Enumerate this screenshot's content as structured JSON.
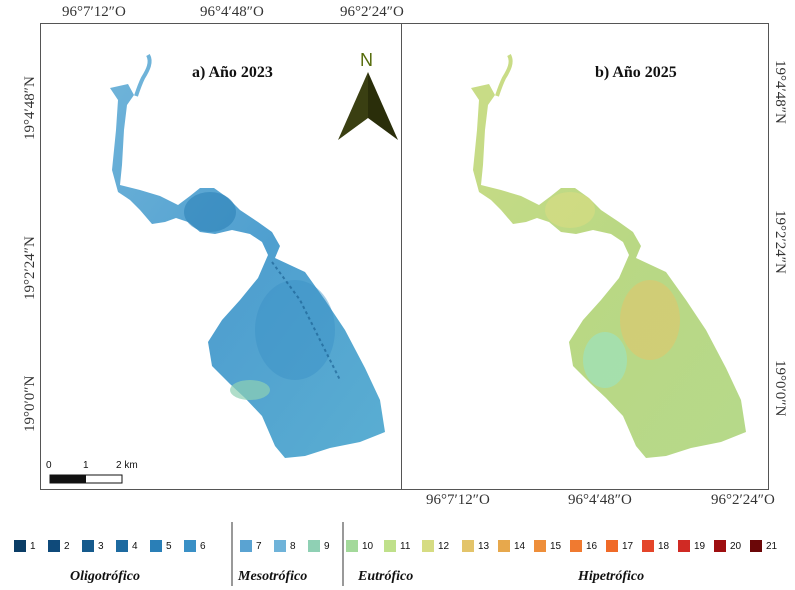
{
  "panels": {
    "a": {
      "title": "a) Año 2023"
    },
    "b": {
      "title": "b) Año 2025"
    }
  },
  "coords": {
    "top": [
      "96°7′12″O",
      "96°4′48″O",
      "96°2′24″O"
    ],
    "bottom": [
      "96°7′12″O",
      "96°4′48″O",
      "96°2′24″O"
    ],
    "left": [
      "19°4′48″N",
      "19°2′24″N",
      "19°0′0″N"
    ],
    "right": [
      "19°4′48″N",
      "19°2′24″N",
      "19°0′0″N"
    ]
  },
  "north_arrow": {
    "label": "N"
  },
  "scale_bar": {
    "labels": [
      "0",
      "1",
      "2 km"
    ]
  },
  "legend": {
    "items": [
      {
        "label": "1",
        "color": "#0b3d66"
      },
      {
        "label": "2",
        "color": "#0f4a7a"
      },
      {
        "label": "3",
        "color": "#155a8c"
      },
      {
        "label": "4",
        "color": "#1d6aa0"
      },
      {
        "label": "5",
        "color": "#2a7fb7"
      },
      {
        "label": "6",
        "color": "#3a90c6"
      },
      {
        "label": "7",
        "color": "#5aa3d2"
      },
      {
        "label": "8",
        "color": "#6fb3d9"
      },
      {
        "label": "9",
        "color": "#8fd0b4"
      },
      {
        "label": "10",
        "color": "#a3d99a"
      },
      {
        "label": "11",
        "color": "#bfe08a"
      },
      {
        "label": "12",
        "color": "#d6dc82"
      },
      {
        "label": "13",
        "color": "#e3c46a"
      },
      {
        "label": "14",
        "color": "#e7a84c"
      },
      {
        "label": "15",
        "color": "#ee8e3a"
      },
      {
        "label": "16",
        "color": "#f07a30"
      },
      {
        "label": "17",
        "color": "#f06a28"
      },
      {
        "label": "18",
        "color": "#e4452a"
      },
      {
        "label": "19",
        "color": "#d02a24"
      },
      {
        "label": "20",
        "color": "#9e0e10"
      },
      {
        "label": "21",
        "color": "#6b0708"
      }
    ],
    "categories": [
      "Oligotrófico",
      "Mesotrófico",
      "Eutrófico",
      "Hipetrófico"
    ]
  }
}
